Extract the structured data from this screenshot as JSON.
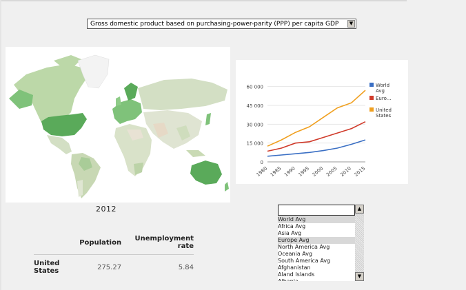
{
  "indicator": {
    "selected": "Gross domestic product based on purchasing-power-parity (PPP) per capita GDP"
  },
  "map": {
    "year": "2012",
    "highlight_color": "#5aaa5a",
    "base_color": "#d6e0c4"
  },
  "table": {
    "headers": [
      "",
      "Population",
      "Unemployment rate"
    ],
    "rows": [
      {
        "name": "United States",
        "population": "275.27",
        "unemployment": "5.84"
      }
    ]
  },
  "chart_data": {
    "type": "line",
    "x": [
      1980,
      1985,
      1990,
      1995,
      2000,
      2005,
      2010,
      2015
    ],
    "xticks": [
      "1980",
      "1985",
      "1990",
      "1995",
      "2000",
      "2005",
      "2010",
      "2015"
    ],
    "yticks": [
      "0",
      "15 000",
      "30 000",
      "45 000",
      "60 000"
    ],
    "ylim": [
      0,
      62000
    ],
    "series": [
      {
        "name": "World Avg",
        "color": "#3a6fc4",
        "values": [
          4500,
          5500,
          6500,
          7500,
          9000,
          11000,
          14000,
          17500
        ]
      },
      {
        "name": "Euro...",
        "color": "#d03a2a",
        "values": [
          8500,
          11000,
          15000,
          16000,
          19500,
          23000,
          26500,
          32000
        ]
      },
      {
        "name": "United States",
        "color": "#f0a020",
        "values": [
          12500,
          17500,
          23500,
          28000,
          35500,
          43000,
          47000,
          57000
        ]
      }
    ],
    "legend_placement": "right"
  },
  "countries": {
    "items": [
      "World Avg",
      "Africa Avg",
      "Asia Avg",
      "Europe Avg",
      "North America Avg",
      "Oceania Avg",
      "South America Avg",
      "Afghanistan",
      "Aland Islands",
      "Albania"
    ],
    "selected": [
      "World Avg",
      "Europe Avg"
    ],
    "input_value": ""
  }
}
